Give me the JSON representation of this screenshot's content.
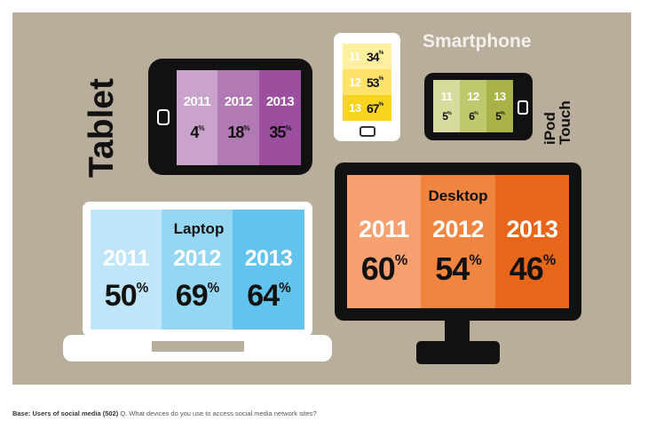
{
  "footer": {
    "base": "Base: Users of social media (502)",
    "question": "Q. What devices do you use to access social media network sites?"
  },
  "chart_data": {
    "type": "bar",
    "title": "",
    "unit": "%",
    "devices": [
      {
        "name": "Tablet",
        "years": [
          "2011",
          "2012",
          "2013"
        ],
        "values": [
          4,
          18,
          35
        ],
        "colors": [
          "#c9a3cc",
          "#b17ab4",
          "#9c4f9f"
        ]
      },
      {
        "name": "Smartphone",
        "years": [
          "11",
          "12",
          "13"
        ],
        "values": [
          34,
          53,
          67
        ],
        "colors": [
          "#fff0a0",
          "#fde36a",
          "#f8d320"
        ]
      },
      {
        "name": "iPod Touch",
        "years": [
          "11",
          "12",
          "13"
        ],
        "values": [
          5,
          6,
          5
        ],
        "colors": [
          "#d7dc9d",
          "#c0c86e",
          "#a8b247"
        ]
      },
      {
        "name": "Laptop",
        "years": [
          "2011",
          "2012",
          "2013"
        ],
        "values": [
          50,
          69,
          64
        ],
        "colors": [
          "#bfe6f8",
          "#95d6f3",
          "#62c4ed"
        ]
      },
      {
        "name": "Desktop",
        "years": [
          "2011",
          "2012",
          "2013"
        ],
        "values": [
          60,
          54,
          46
        ],
        "colors": [
          "#f6a070",
          "#f08540",
          "#e8661a"
        ]
      }
    ]
  }
}
